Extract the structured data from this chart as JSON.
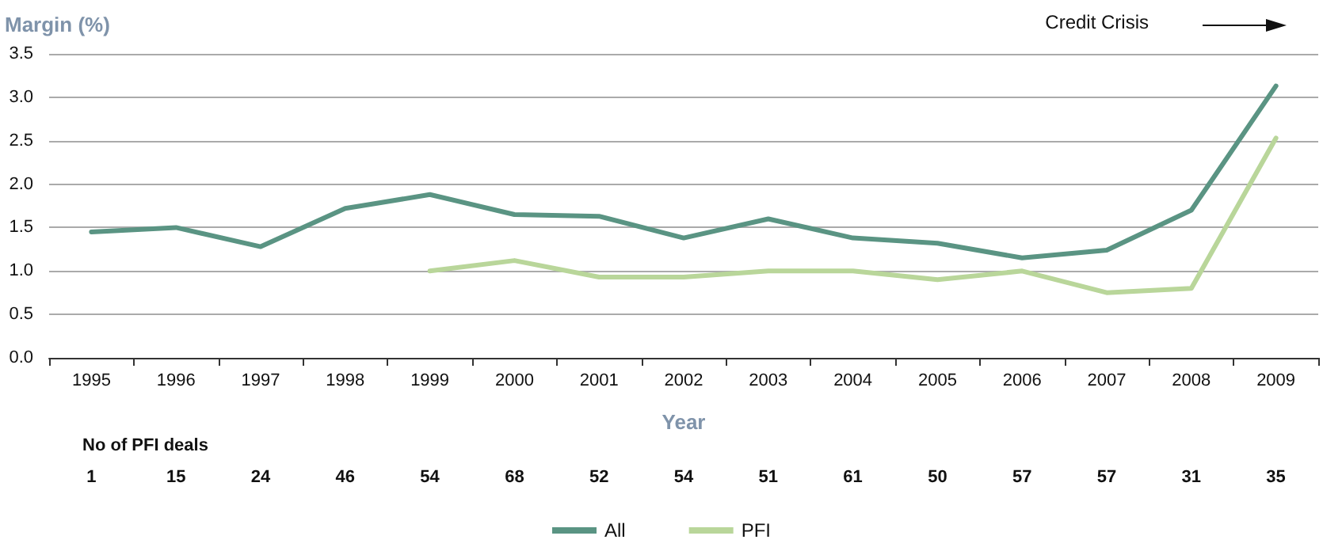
{
  "chart_data": {
    "type": "line",
    "xlabel": "Year",
    "ylabel": "Margin (%)",
    "categories": [
      "1995",
      "1996",
      "1997",
      "1998",
      "1999",
      "2000",
      "2001",
      "2002",
      "2003",
      "2004",
      "2005",
      "2006",
      "2007",
      "2008",
      "2009"
    ],
    "series": [
      {
        "name": "All",
        "color": "#5a9483",
        "values": [
          1.45,
          1.5,
          1.28,
          1.72,
          1.88,
          1.65,
          1.63,
          1.38,
          1.6,
          1.38,
          1.32,
          1.15,
          1.24,
          1.7,
          3.13
        ]
      },
      {
        "name": "PFI",
        "color": "#b9d69a",
        "values": [
          null,
          null,
          null,
          null,
          1.0,
          1.12,
          0.93,
          0.93,
          1.0,
          1.0,
          0.9,
          1.0,
          0.75,
          0.8,
          2.53
        ]
      }
    ],
    "ylim": [
      0,
      3.5
    ],
    "yticks": [
      {
        "value": 0,
        "label": "0.0"
      },
      {
        "value": 0.5,
        "label": "0.5"
      },
      {
        "value": 1,
        "label": "1.0"
      },
      {
        "value": 1.5,
        "label": "1.5"
      },
      {
        "value": 2,
        "label": "2.0"
      },
      {
        "value": 2.5,
        "label": "2.5"
      },
      {
        "value": 3,
        "label": "3.0"
      },
      {
        "value": 3.5,
        "label": "3.5"
      }
    ],
    "grid": "y",
    "legend": "bottom",
    "marker": "none",
    "line_style": "solid",
    "annotations": [
      "Credit Crisis",
      "No of PFI deals",
      "1",
      "15",
      "24",
      "46",
      "54",
      "68",
      "52",
      "54",
      "51",
      "61",
      "50",
      "57",
      "57",
      "31",
      "35"
    ]
  }
}
